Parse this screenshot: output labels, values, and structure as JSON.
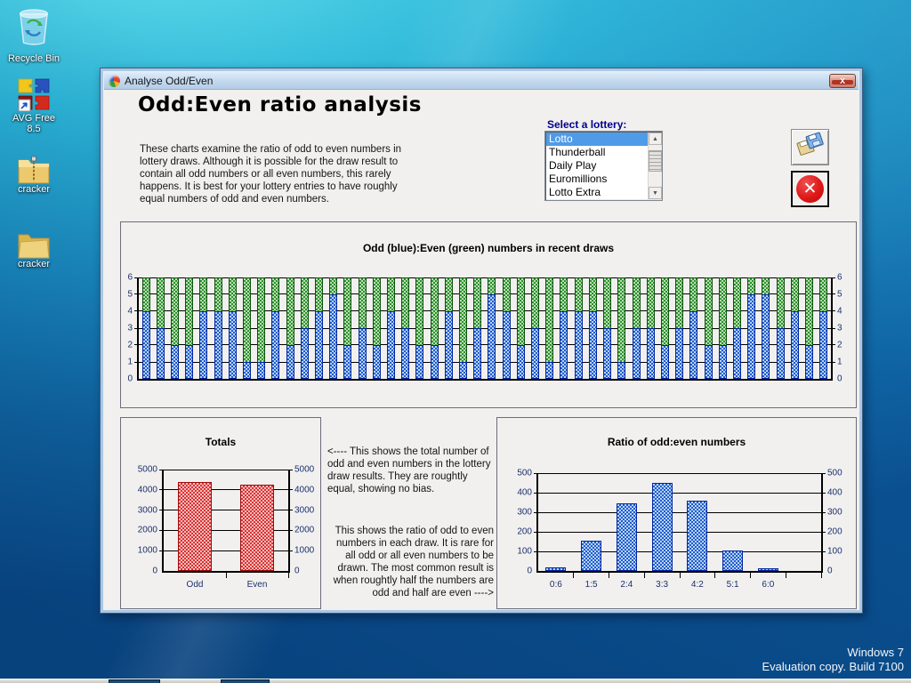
{
  "desktop": {
    "icons": [
      {
        "label": "Recycle Bin"
      },
      {
        "label": "AVG Free 8.5"
      },
      {
        "label": "cracker"
      },
      {
        "label": "cracker"
      }
    ],
    "watermark": {
      "line1": "Windows 7",
      "line2": "Evaluation copy. Build 7100"
    }
  },
  "window": {
    "title": "Analyse Odd/Even",
    "close_glyph": "x",
    "exit_glyph": "✕",
    "heading": "Odd:Even ratio analysis",
    "intro": "These charts examine the ratio of odd to even numbers in lottery draws. Although it is possible for the draw result to contain all odd numbers or all even numbers, this rarely happens. It is best for your lottery entries to have roughly equal numbers of odd and even numbers.",
    "lottery": {
      "label": "Select a lottery:",
      "selected": "Lotto",
      "items": [
        "Lotto",
        "Thunderball",
        "Daily Play",
        "Euromillions",
        "Lotto Extra"
      ],
      "scroll_up_glyph": "▲",
      "scroll_down_glyph": "▼"
    },
    "notes": {
      "totals_note": "<---- This shows the total number of odd and even numbers in the lottery draw results. They are roughtly equal, showing no bias.",
      "ratio_note": "This shows the ratio of odd to even numbers in each draw. It is rare for all odd or all even numbers to be drawn. The most common result is when roughtly half the numbers are odd and half are even ---->"
    },
    "colors": {
      "odd_blue": "#1e5ccc",
      "even_green": "#2f8f2f",
      "totals_red": "#d83232"
    }
  },
  "chart_data": [
    {
      "type": "bar",
      "stacked": true,
      "title": "Odd (blue):Even (green) numbers in recent draws",
      "ylim": [
        0,
        6
      ],
      "yticks": [
        0,
        1,
        2,
        3,
        4,
        5,
        6
      ],
      "series": [
        {
          "name": "Odd",
          "color": "#1e5ccc",
          "values": [
            4,
            3,
            2,
            2,
            4,
            4,
            4,
            1,
            1,
            4,
            2,
            3,
            4,
            5,
            2,
            3,
            2,
            4,
            3,
            2,
            2,
            4,
            1,
            3,
            5,
            4,
            2,
            3,
            1,
            4,
            4,
            4,
            3,
            1,
            3,
            3,
            2,
            3,
            4,
            2,
            2,
            3,
            5,
            5,
            3,
            4,
            2,
            4
          ]
        },
        {
          "name": "Even",
          "color": "#2f8f2f",
          "values": [
            2,
            3,
            4,
            4,
            2,
            2,
            2,
            5,
            5,
            2,
            4,
            3,
            2,
            1,
            4,
            3,
            4,
            2,
            3,
            4,
            4,
            2,
            5,
            3,
            1,
            2,
            4,
            3,
            5,
            2,
            2,
            2,
            3,
            5,
            3,
            3,
            4,
            3,
            2,
            4,
            4,
            3,
            1,
            1,
            3,
            2,
            4,
            2
          ]
        }
      ],
      "legend": "none",
      "grid": true
    },
    {
      "type": "bar",
      "title": "Totals",
      "categories": [
        "Odd",
        "Even"
      ],
      "values": [
        4400,
        4250
      ],
      "ylim": [
        0,
        5000
      ],
      "yticks": [
        0,
        1000,
        2000,
        3000,
        4000,
        5000
      ],
      "bar_color": "red",
      "grid": true
    },
    {
      "type": "bar",
      "title": "Ratio of odd:even numbers",
      "categories": [
        "0:6",
        "1:5",
        "2:4",
        "3:3",
        "4:2",
        "5:1",
        "6:0",
        ""
      ],
      "values": [
        20,
        155,
        345,
        450,
        360,
        105,
        0,
        0
      ],
      "last_labeled_value": 15,
      "ylim": [
        0,
        500
      ],
      "yticks": [
        0,
        100,
        200,
        300,
        400,
        500
      ],
      "bar_color": "blue",
      "grid": true
    }
  ]
}
